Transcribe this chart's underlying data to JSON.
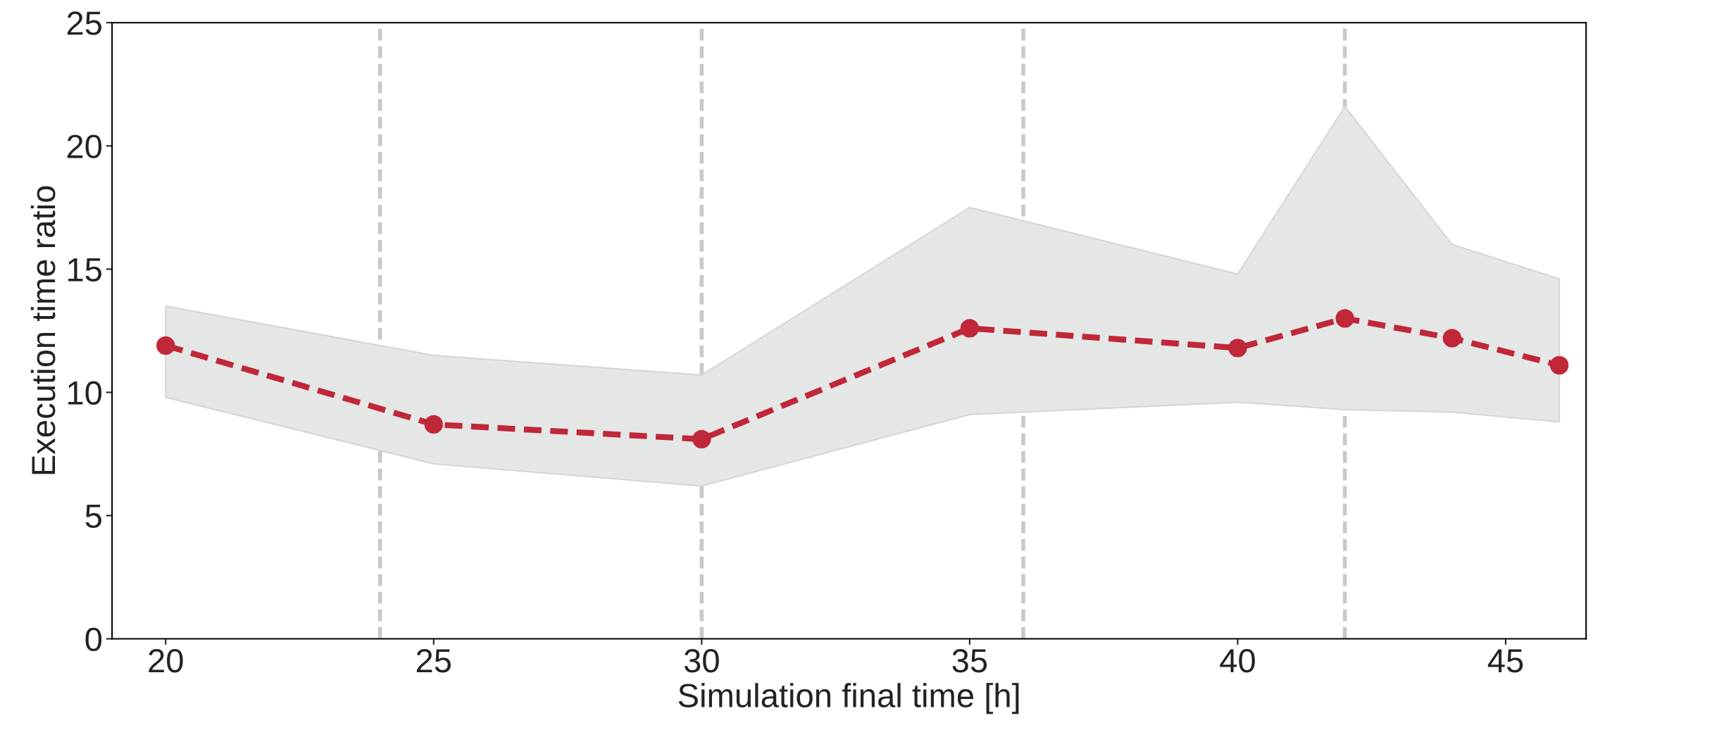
{
  "chart_data": {
    "type": "line",
    "xlabel": "Simulation final time [h]",
    "ylabel": "Execution time ratio",
    "x": [
      20,
      25,
      30,
      35,
      40,
      42,
      44,
      46
    ],
    "series": [
      {
        "color": "#c0283a",
        "values": [
          11.9,
          8.7,
          8.1,
          12.6,
          11.8,
          13.0,
          12.2,
          11.1
        ],
        "lower": [
          9.8,
          7.1,
          6.2,
          9.1,
          9.6,
          9.3,
          9.2,
          8.8
        ],
        "upper": [
          13.5,
          11.5,
          10.7,
          17.5,
          14.8,
          21.6,
          16.0,
          14.6
        ]
      }
    ],
    "xlim": [
      19,
      46.5
    ],
    "ylim": [
      0,
      25
    ],
    "xticks": [
      20,
      25,
      30,
      35,
      40,
      45
    ],
    "yticks": [
      0,
      5,
      10,
      15,
      20,
      25
    ],
    "ref_lines": [
      {
        "axis": "x",
        "value": 24,
        "color": "#c8c8c8",
        "line_style": "dashed"
      },
      {
        "axis": "x",
        "value": 30,
        "color": "#c8c8c8",
        "line_style": "dashed"
      },
      {
        "axis": "x",
        "value": 36,
        "color": "#c8c8c8",
        "line_style": "dashed"
      },
      {
        "axis": "x",
        "value": 42,
        "color": "#c8c8c8",
        "line_style": "dashed"
      }
    ],
    "grid": false,
    "legend": false,
    "marker": "circle",
    "line_style": "dashed"
  }
}
